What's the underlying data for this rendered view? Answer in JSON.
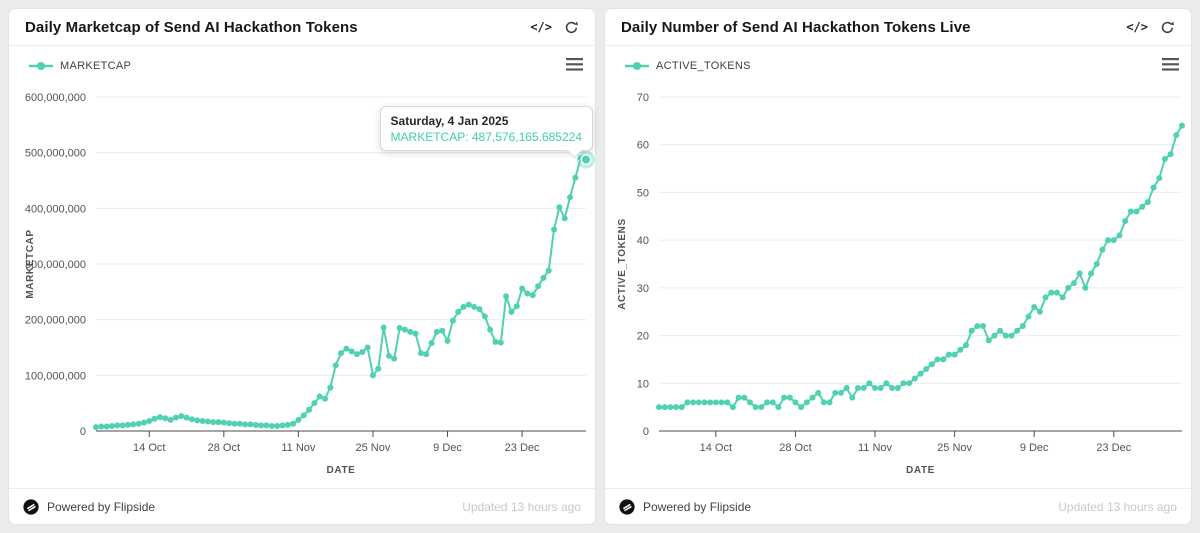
{
  "colors": {
    "series_teal": "#4fd1b2",
    "tooltip_value_teal": "#3ecfac",
    "page_background": "#ebebed",
    "grid_line": "#ececee",
    "axis_line": "#4b4b50"
  },
  "icons": {
    "code_label": "</>",
    "refresh": "refresh-icon",
    "menu": "hamburger-menu-icon",
    "flipside_logo": "flipside-logo"
  },
  "cards": [
    {
      "title": "Daily Marketcap of Send AI Hackathon Tokens",
      "footer": {
        "powered_by": "Powered by Flipside",
        "updated": "Updated 13 hours ago"
      }
    },
    {
      "title": "Daily Number of Send AI Hackathon Tokens Live",
      "footer": {
        "powered_by": "Powered by Flipside",
        "updated": "Updated 13 hours ago"
      }
    }
  ],
  "chart_data": [
    {
      "type": "line",
      "title": "Daily Marketcap of Send AI Hackathon Tokens",
      "series_name": "MARKETCAP",
      "xlabel": "DATE",
      "ylabel": "MARKETCAP",
      "color": "#4fd1b2",
      "x_start_date": "2024-10-04",
      "x_end_date": "2025-01-04",
      "x_tick_labels": [
        "14 Oct",
        "28 Oct",
        "11 Nov",
        "25 Nov",
        "9 Dec",
        "23 Dec"
      ],
      "x_tick_days": [
        10,
        24,
        38,
        52,
        66,
        80
      ],
      "y_ticks": [
        0,
        100000000,
        200000000,
        300000000,
        400000000,
        500000000,
        600000000
      ],
      "ylim": [
        0,
        600000000
      ],
      "grid": true,
      "legend_position": "top-left",
      "highlight_last": true,
      "tooltip": {
        "title": "Saturday, 4 Jan 2025",
        "value_label": "MARKETCAP: 487,576,165.685224"
      },
      "values": [
        7000000,
        8000000,
        8000000,
        9000000,
        10000000,
        10000000,
        11000000,
        12000000,
        13000000,
        15000000,
        18000000,
        22000000,
        25000000,
        23000000,
        20000000,
        24000000,
        27000000,
        24000000,
        21000000,
        19000000,
        18000000,
        17000000,
        16000000,
        16000000,
        15000000,
        14000000,
        13000000,
        13000000,
        12000000,
        12000000,
        11000000,
        10000000,
        10000000,
        9000000,
        9000000,
        10000000,
        11000000,
        13000000,
        20000000,
        28000000,
        38000000,
        50000000,
        62000000,
        58000000,
        78000000,
        118000000,
        140000000,
        148000000,
        143000000,
        138000000,
        142000000,
        150000000,
        100000000,
        112000000,
        186000000,
        135000000,
        130000000,
        185000000,
        182000000,
        178000000,
        175000000,
        140000000,
        138000000,
        158000000,
        178000000,
        180000000,
        162000000,
        198000000,
        214000000,
        223000000,
        227000000,
        223000000,
        219000000,
        206000000,
        182000000,
        160000000,
        159000000,
        242000000,
        214000000,
        224000000,
        256000000,
        247000000,
        244000000,
        260000000,
        275000000,
        288000000,
        362000000,
        402000000,
        382000000,
        420000000,
        455000000,
        490000000,
        487576165.685224
      ]
    },
    {
      "type": "line",
      "title": "Daily Number of Send AI Hackathon Tokens Live",
      "series_name": "ACTIVE_TOKENS",
      "xlabel": "DATE",
      "ylabel": "ACTIVE_TOKENS",
      "color": "#4fd1b2",
      "x_start_date": "2024-10-04",
      "x_end_date": "2025-01-04",
      "x_tick_labels": [
        "14 Oct",
        "28 Oct",
        "11 Nov",
        "25 Nov",
        "9 Dec",
        "23 Dec"
      ],
      "x_tick_days": [
        10,
        24,
        38,
        52,
        66,
        80
      ],
      "y_ticks": [
        0,
        10,
        20,
        30,
        40,
        50,
        60,
        70
      ],
      "ylim": [
        0,
        70
      ],
      "grid": true,
      "legend_position": "top-left",
      "highlight_last": false,
      "values": [
        5,
        5,
        5,
        5,
        5,
        6,
        6,
        6,
        6,
        6,
        6,
        6,
        6,
        5,
        7,
        7,
        6,
        5,
        5,
        6,
        6,
        5,
        7,
        7,
        6,
        5,
        6,
        7,
        8,
        6,
        6,
        8,
        8,
        9,
        7,
        9,
        9,
        10,
        9,
        9,
        10,
        9,
        9,
        10,
        10,
        11,
        12,
        13,
        14,
        15,
        15,
        16,
        16,
        17,
        18,
        21,
        22,
        22,
        19,
        20,
        21,
        20,
        20,
        21,
        22,
        24,
        26,
        25,
        28,
        29,
        29,
        28,
        30,
        31,
        33,
        30,
        33,
        35,
        38,
        40,
        40,
        41,
        44,
        46,
        46,
        47,
        48,
        51,
        53,
        57,
        58,
        62,
        64
      ]
    }
  ]
}
